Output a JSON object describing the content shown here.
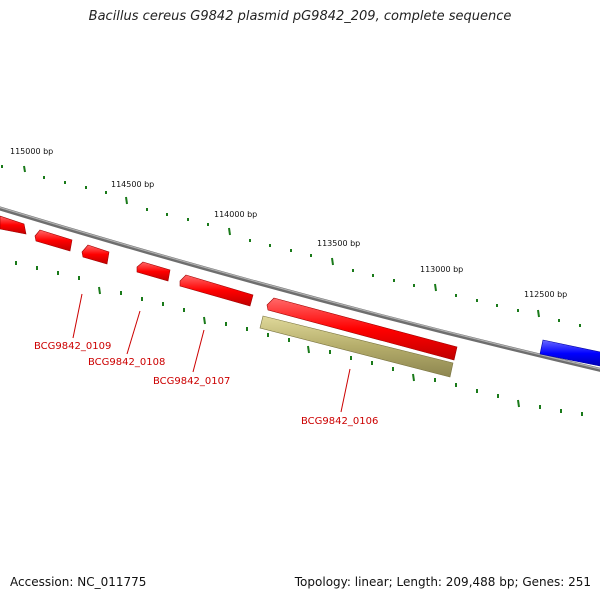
{
  "header": {
    "title": "Bacillus cereus G9842 plasmid pG9842_209, complete sequence"
  },
  "footer": {
    "accession": "Accession: NC_011775",
    "summary": "Topology: linear; Length: 209,488 bp; Genes: 251"
  },
  "ruler": {
    "labels": [
      "115000 bp",
      "114500 bp",
      "114000 bp",
      "113500 bp",
      "113000 bp",
      "112500 bp"
    ]
  },
  "genes": [
    {
      "name": "BCG9842_0109"
    },
    {
      "name": "BCG9842_0108"
    },
    {
      "name": "BCG9842_0107"
    },
    {
      "name": "BCG9842_0106"
    }
  ],
  "colors": {
    "forward_gene": "#ff0000",
    "reverse_gene": "#0000ff",
    "highlight_gene": "#b5ad6b",
    "backbone": "#808080",
    "tick": "#1a7a1a",
    "label_text": "#cc0000"
  }
}
